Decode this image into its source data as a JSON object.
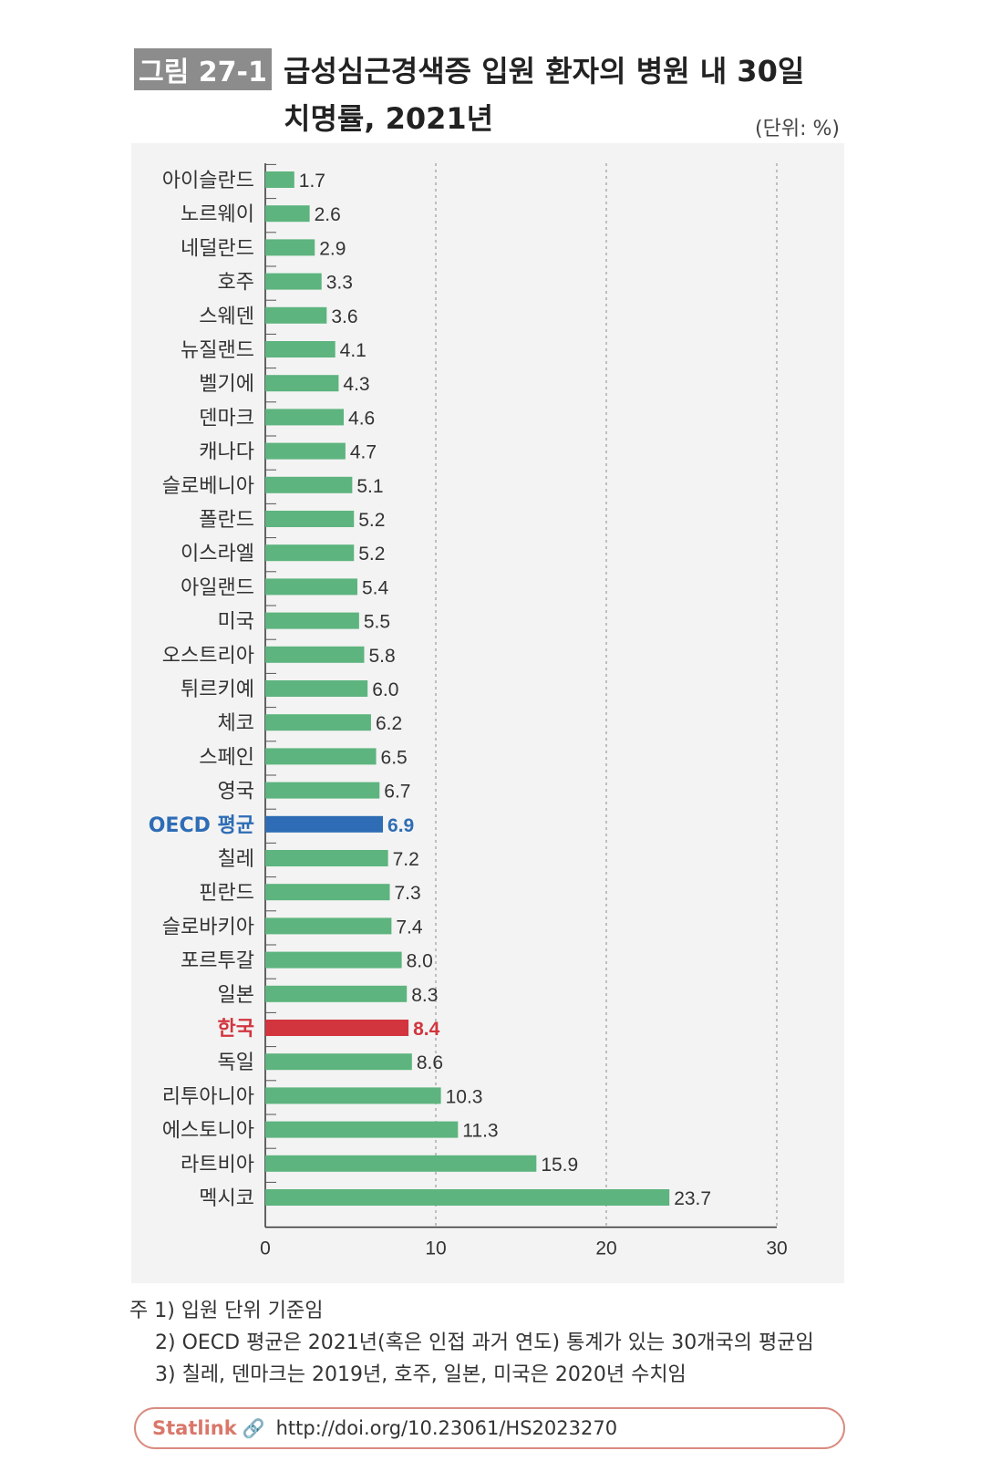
{
  "figure": {
    "badge": "그림 27-1",
    "title_line1": "급성심근경색증 입원 환자의 병원 내 30일",
    "title_line2": "치명률, 2021년",
    "unit": "(단위: %)"
  },
  "colors": {
    "bar": "#5db47e",
    "oecd": "#2e6db5",
    "korea": "#d2353e",
    "panel_bg": "#f3f3f3"
  },
  "chart_data": {
    "type": "bar",
    "orientation": "horizontal",
    "categories": [
      "아이슬란드",
      "노르웨이",
      "네덜란드",
      "호주",
      "스웨덴",
      "뉴질랜드",
      "벨기에",
      "덴마크",
      "캐나다",
      "슬로베니아",
      "폴란드",
      "이스라엘",
      "아일랜드",
      "미국",
      "오스트리아",
      "튀르키예",
      "체코",
      "스페인",
      "영국",
      "OECD 평균",
      "칠레",
      "핀란드",
      "슬로바키아",
      "포르투갈",
      "일본",
      "한국",
      "독일",
      "리투아니아",
      "에스토니아",
      "라트비아",
      "멕시코"
    ],
    "values": [
      1.7,
      2.6,
      2.9,
      3.3,
      3.6,
      4.1,
      4.3,
      4.6,
      4.7,
      5.1,
      5.2,
      5.2,
      5.4,
      5.5,
      5.8,
      6.0,
      6.2,
      6.5,
      6.7,
      6.9,
      7.2,
      7.3,
      7.4,
      8.0,
      8.3,
      8.4,
      8.6,
      10.3,
      11.3,
      15.9,
      23.7
    ],
    "value_labels": [
      "1.7",
      "2.6",
      "2.9",
      "3.3",
      "3.6",
      "4.1",
      "4.3",
      "4.6",
      "4.7",
      "5.1",
      "5.2",
      "5.2",
      "5.4",
      "5.5",
      "5.8",
      "6.0",
      "6.2",
      "6.5",
      "6.7",
      "6.9",
      "7.2",
      "7.3",
      "7.4",
      "8.0",
      "8.3",
      "8.4",
      "8.6",
      "10.3",
      "11.3",
      "15.9",
      "23.7"
    ],
    "highlight": {
      "OECD 평균": "oecd",
      "한국": "korea"
    },
    "xlim": [
      0,
      30
    ],
    "xticks": [
      0,
      10,
      20,
      30
    ],
    "xtick_labels": [
      "0",
      "10",
      "20",
      "30"
    ],
    "grid": "vertical dotted",
    "xlabel": "",
    "ylabel": ""
  },
  "notes": [
    "주 1) 입원 단위 기준임",
    "2) OECD 평균은 2021년(혹은 인접 과거 연도) 통계가 있는 30개국의 평균임",
    "3) 칠레, 덴마크는 2019년, 호주, 일본, 미국은 2020년 수치임"
  ],
  "statlink": {
    "brand": "Statlink",
    "icon": "link-icon",
    "url": "http://doi.org/10.23061/HS2023270"
  }
}
